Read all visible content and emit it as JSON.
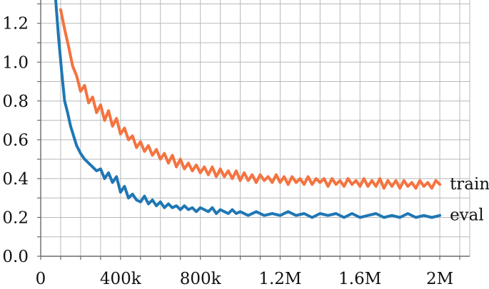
{
  "chart_data": {
    "type": "line",
    "title": "",
    "xlabel": "",
    "ylabel": "",
    "xlim": [
      0,
      2150000
    ],
    "ylim": [
      0,
      1.32
    ],
    "grid": true,
    "legend": "inline labels at right end of each line",
    "x_ticks": [
      {
        "value": 0,
        "label": "0"
      },
      {
        "value": 400000,
        "label": "400k"
      },
      {
        "value": 800000,
        "label": "800k"
      },
      {
        "value": 1200000,
        "label": "1.2M"
      },
      {
        "value": 1600000,
        "label": "1.6M"
      },
      {
        "value": 2000000,
        "label": "2M"
      }
    ],
    "y_ticks": [
      {
        "value": 0.0,
        "label": "0.0"
      },
      {
        "value": 0.2,
        "label": "0.2"
      },
      {
        "value": 0.4,
        "label": "0.4"
      },
      {
        "value": 0.6,
        "label": "0.6"
      },
      {
        "value": 0.8,
        "label": "0.8"
      },
      {
        "value": 1.0,
        "label": "1.0"
      },
      {
        "value": 1.2,
        "label": "1.2"
      }
    ],
    "series": [
      {
        "name": "train",
        "color": "#f4733f",
        "x": [
          100000,
          120000,
          140000,
          160000,
          180000,
          200000,
          220000,
          240000,
          260000,
          280000,
          300000,
          320000,
          340000,
          360000,
          380000,
          400000,
          420000,
          440000,
          460000,
          480000,
          500000,
          520000,
          540000,
          560000,
          580000,
          600000,
          620000,
          640000,
          660000,
          680000,
          700000,
          720000,
          740000,
          760000,
          780000,
          800000,
          820000,
          840000,
          860000,
          880000,
          900000,
          920000,
          940000,
          960000,
          980000,
          1000000,
          1020000,
          1040000,
          1060000,
          1080000,
          1100000,
          1120000,
          1140000,
          1160000,
          1180000,
          1200000,
          1220000,
          1240000,
          1260000,
          1280000,
          1300000,
          1320000,
          1340000,
          1360000,
          1380000,
          1400000,
          1420000,
          1440000,
          1460000,
          1480000,
          1500000,
          1520000,
          1540000,
          1560000,
          1580000,
          1600000,
          1620000,
          1640000,
          1660000,
          1680000,
          1700000,
          1720000,
          1740000,
          1760000,
          1780000,
          1800000,
          1820000,
          1840000,
          1860000,
          1880000,
          1900000,
          1920000,
          1940000,
          1960000,
          1980000,
          2000000
        ],
        "values": [
          1.27,
          1.17,
          1.08,
          0.98,
          0.93,
          0.85,
          0.88,
          0.79,
          0.82,
          0.74,
          0.78,
          0.7,
          0.75,
          0.67,
          0.71,
          0.63,
          0.66,
          0.6,
          0.62,
          0.56,
          0.59,
          0.54,
          0.57,
          0.52,
          0.55,
          0.5,
          0.53,
          0.48,
          0.52,
          0.46,
          0.5,
          0.45,
          0.48,
          0.44,
          0.47,
          0.43,
          0.46,
          0.42,
          0.46,
          0.41,
          0.45,
          0.41,
          0.44,
          0.4,
          0.44,
          0.39,
          0.43,
          0.39,
          0.42,
          0.38,
          0.42,
          0.39,
          0.41,
          0.38,
          0.42,
          0.38,
          0.41,
          0.37,
          0.41,
          0.38,
          0.4,
          0.37,
          0.41,
          0.37,
          0.4,
          0.38,
          0.4,
          0.36,
          0.4,
          0.37,
          0.39,
          0.36,
          0.4,
          0.37,
          0.39,
          0.36,
          0.4,
          0.36,
          0.39,
          0.36,
          0.4,
          0.35,
          0.39,
          0.36,
          0.39,
          0.35,
          0.39,
          0.36,
          0.38,
          0.35,
          0.39,
          0.36,
          0.38,
          0.35,
          0.39,
          0.37
        ]
      },
      {
        "name": "eval",
        "color": "#1f77b4",
        "x": [
          75000,
          90000,
          105000,
          120000,
          135000,
          150000,
          165000,
          180000,
          200000,
          220000,
          240000,
          260000,
          280000,
          300000,
          320000,
          340000,
          360000,
          380000,
          400000,
          420000,
          440000,
          460000,
          480000,
          500000,
          520000,
          540000,
          560000,
          580000,
          600000,
          620000,
          640000,
          660000,
          680000,
          700000,
          720000,
          740000,
          760000,
          780000,
          800000,
          820000,
          840000,
          860000,
          880000,
          900000,
          920000,
          940000,
          960000,
          980000,
          1000000,
          1040000,
          1080000,
          1120000,
          1160000,
          1200000,
          1240000,
          1280000,
          1320000,
          1360000,
          1400000,
          1440000,
          1480000,
          1520000,
          1560000,
          1600000,
          1640000,
          1680000,
          1720000,
          1760000,
          1800000,
          1840000,
          1880000,
          1920000,
          1960000,
          2000000
        ],
        "values": [
          1.32,
          1.12,
          0.95,
          0.8,
          0.74,
          0.67,
          0.62,
          0.57,
          0.53,
          0.5,
          0.48,
          0.46,
          0.44,
          0.45,
          0.4,
          0.43,
          0.38,
          0.41,
          0.33,
          0.36,
          0.3,
          0.32,
          0.29,
          0.28,
          0.31,
          0.27,
          0.29,
          0.26,
          0.28,
          0.25,
          0.27,
          0.25,
          0.26,
          0.24,
          0.26,
          0.24,
          0.25,
          0.23,
          0.25,
          0.24,
          0.23,
          0.25,
          0.22,
          0.24,
          0.23,
          0.22,
          0.24,
          0.22,
          0.23,
          0.21,
          0.23,
          0.21,
          0.22,
          0.21,
          0.23,
          0.21,
          0.22,
          0.2,
          0.22,
          0.21,
          0.22,
          0.2,
          0.22,
          0.2,
          0.21,
          0.22,
          0.2,
          0.21,
          0.2,
          0.22,
          0.2,
          0.21,
          0.2,
          0.21
        ]
      }
    ]
  }
}
